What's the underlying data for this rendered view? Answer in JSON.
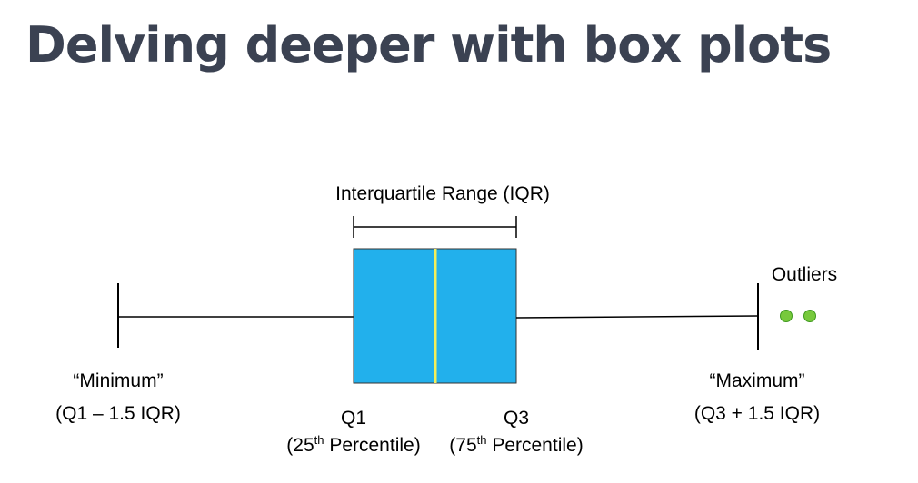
{
  "slide": {
    "title": "Delving deeper with box plots"
  },
  "diagram": {
    "iqr_label": "Interquartile Range (IQR)",
    "outliers_label": "Outliers",
    "minimum": {
      "label": "“Minimum”",
      "formula": "(Q1 – 1.5 IQR)"
    },
    "maximum": {
      "label": "“Maximum”",
      "formula": "(Q3 + 1.5 IQR)"
    },
    "q1": {
      "label": "Q1",
      "percentile_pre": "(25",
      "percentile_sup": "th",
      "percentile_post": " Percentile)"
    },
    "q3": {
      "label": "Q3",
      "percentile_pre": "(75",
      "percentile_sup": "th",
      "percentile_post": " Percentile)"
    },
    "colors": {
      "box_fill": "#22b0ec",
      "median_line": "#f2ef5a",
      "outlier_fill": "#77c93c",
      "outlier_stroke": "#3f9a1f",
      "title_text": "#3b4252"
    }
  }
}
